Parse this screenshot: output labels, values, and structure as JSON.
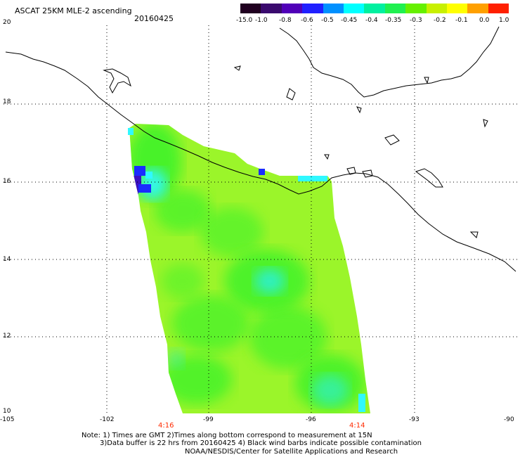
{
  "header": {
    "title": "ASCAT 25KM MLE-2 ascending",
    "date": "20160425"
  },
  "colorbar": {
    "labels": [
      "-15.0",
      "-1.0",
      "-0.8",
      "-0.6",
      "-0.5",
      "-0.45",
      "-0.4",
      "-0.35",
      "-0.3",
      "-0.2",
      "-0.1",
      "0.0",
      "1.0"
    ],
    "colors": [
      "#200020",
      "#3a0a6e",
      "#5000b8",
      "#2020ff",
      "#0090ff",
      "#00ffff",
      "#00f0a0",
      "#20f050",
      "#66f000",
      "#c8f000",
      "#ffff00",
      "#ffa000",
      "#ff2000"
    ]
  },
  "map": {
    "lat_labels": [
      "20",
      "18",
      "16",
      "14",
      "12",
      "10"
    ],
    "lon_labels": [
      "-105",
      "-102",
      "-99",
      "-96",
      "-93",
      "-90"
    ],
    "times": [
      "4:16",
      "4:14"
    ],
    "swath_colors": {
      "base": "#9bf52a",
      "green": "#3ff22a",
      "aqua": "#2ff0c8",
      "cyan": "#30f8ff",
      "blue": "#1a2cff",
      "purple": "#3a10c0"
    }
  },
  "notes": {
    "line1": "Note: 1) Times are GMT 2)Times along bottom correspond to measurement at 15N",
    "line2": "3)Data buffer is 22 hrs from 20160425 4) Black wind barbs indicate possible contamination",
    "line3": "NOAA/NESDIS/Center for Satellite Applications and Research"
  }
}
